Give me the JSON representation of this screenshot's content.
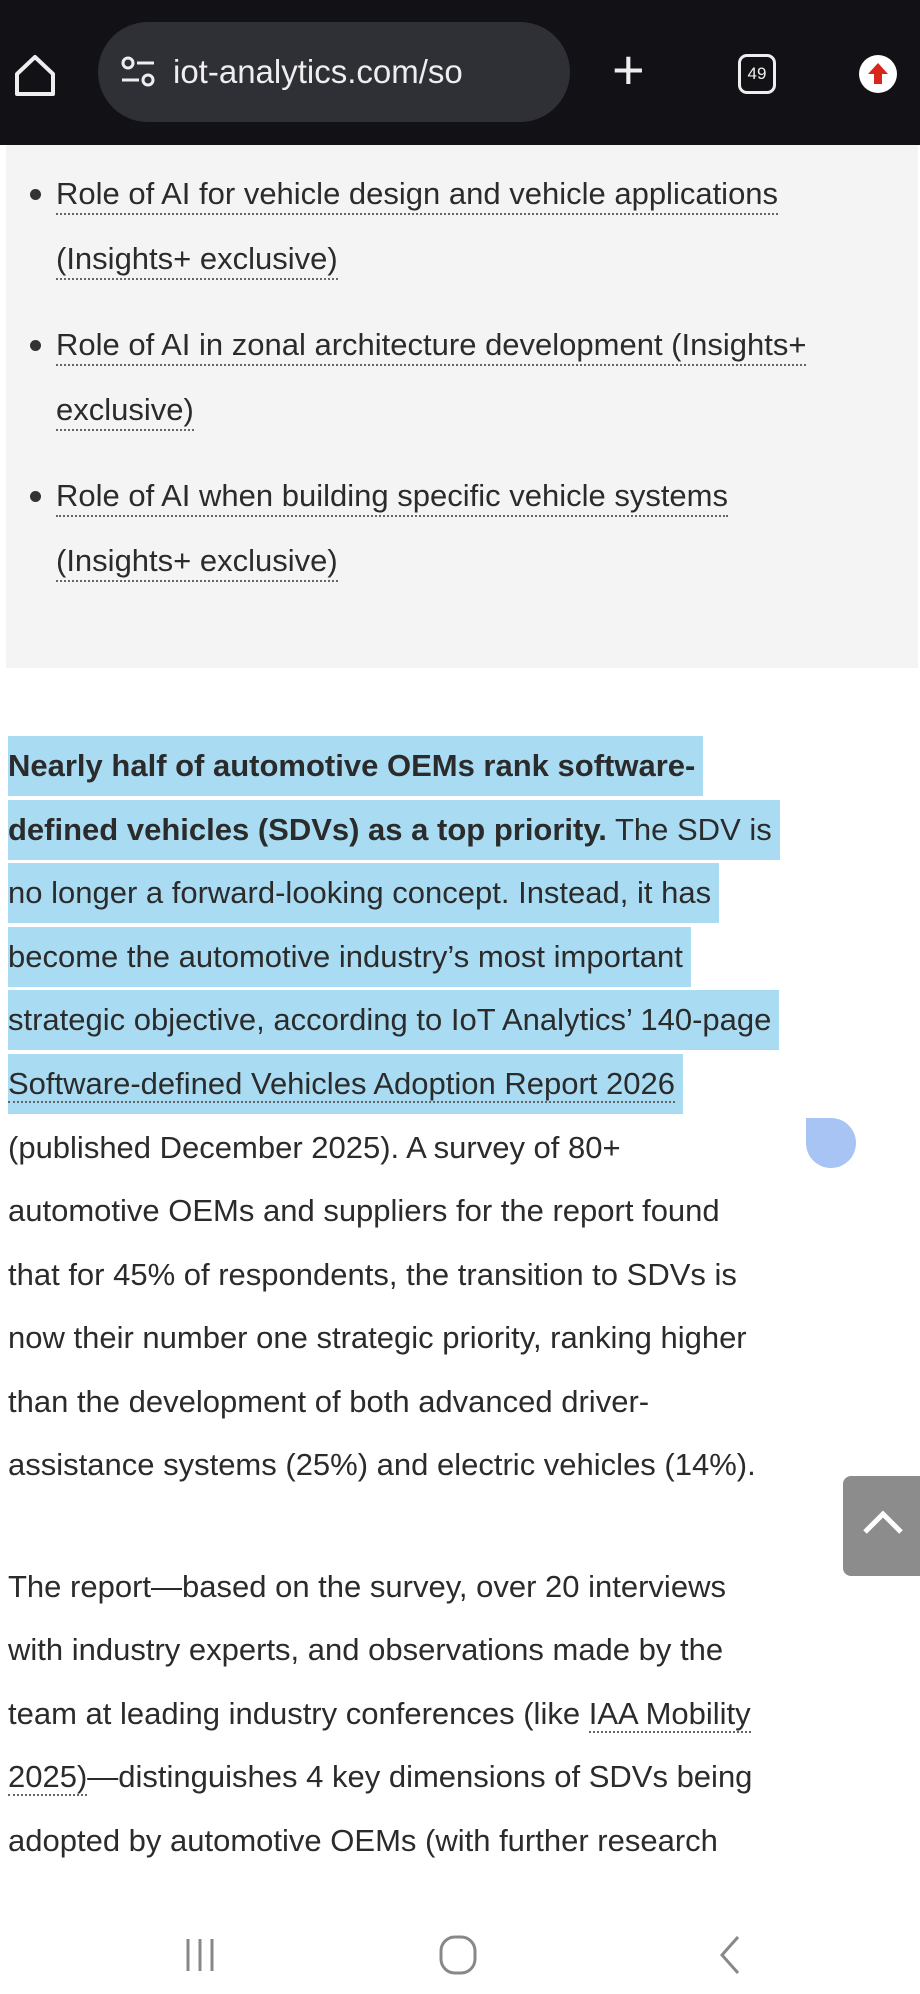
{
  "browser": {
    "url": "iot-analytics.com/so",
    "tab_count": "49"
  },
  "toc_items": [
    [
      "Role of AI for vehicle design and vehicle applications",
      "(Insights+ exclusive)"
    ],
    [
      "Role of AI in zonal architecture development (Insights+",
      "exclusive)"
    ],
    [
      "Role of AI when building specific vehicle systems",
      "(Insights+ exclusive)"
    ]
  ],
  "para1": {
    "bold1": "Nearly half of automotive OEMs rank software-",
    "bold2": "defined vehicles (SDVs) as a top priority.",
    "l2rest": " The SDV is",
    "l3": "no longer a forward-looking concept. Instead, it has",
    "l4": "become the automotive industry’s most important",
    "l5": "strategic objective, according to IoT Analytics’ 140-page",
    "link": "Software-defined Vehicles Adoption Report 2026",
    "l7": "(published December 2025). A survey of 80+",
    "l8": "automotive OEMs and suppliers for the report found",
    "l9": "that for 45% of respondents, the transition to SDVs is",
    "l10": "now their number one strategic priority, ranking higher",
    "l11": "than the development of both advanced driver-",
    "l12": "assistance systems (25%) and electric vehicles (14%)."
  },
  "para2": {
    "l1": "The report—based on the survey, over 20 interviews",
    "l2": "with industry experts, and observations made by the",
    "l3a": "team at leading industry conferences (like ",
    "link1": "IAA Mobility",
    "link2": "2025)",
    "l4rest": "—distinguishes 4 key dimensions of SDVs being",
    "l5": "adopted by automotive OEMs (with further research"
  }
}
